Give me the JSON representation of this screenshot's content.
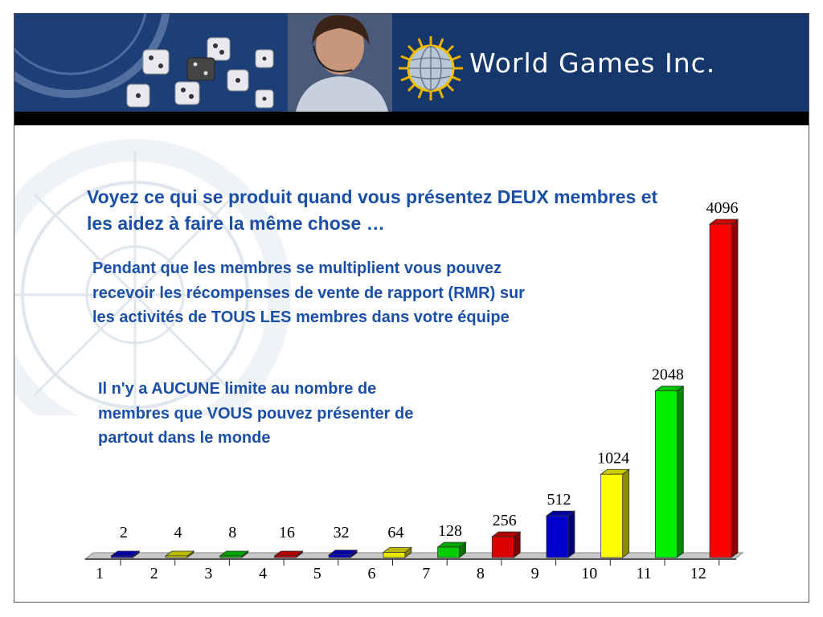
{
  "banner": {
    "brand_text": "World Games Inc.",
    "background_color": "#15376b"
  },
  "headline": "Voyez ce qui se produit quand vous présentez DEUX membres et les aidez à faire la même chose …",
  "paragraph1": "Pendant que les membres se multiplient vous pouvez recevoir les récompenses de vente de rapport (RMR) sur les activités de TOUS LES membres dans votre équipe",
  "paragraph2": "Il n'y a AUCUNE limite au nombre de membres que VOUS pouvez présenter de partout dans le monde",
  "text_color": "#1a4fa8",
  "chart_data": {
    "type": "bar",
    "title": "",
    "xlabel": "",
    "ylabel": "",
    "categories": [
      "1",
      "2",
      "3",
      "4",
      "5",
      "6",
      "7",
      "8",
      "9",
      "10",
      "11",
      "12"
    ],
    "values": [
      2,
      4,
      8,
      16,
      32,
      64,
      128,
      256,
      512,
      1024,
      2048,
      4096
    ],
    "value_labels": [
      "2",
      "4",
      "8",
      "16",
      "32",
      "64",
      "128",
      "256",
      "512",
      "1024",
      "2048",
      "4096"
    ],
    "ylim": [
      0,
      4096
    ],
    "bar_colors": [
      "#0000cc",
      "#e8e800",
      "#00cc00",
      "#dd0000",
      "#0000cc",
      "#e8e800",
      "#00cc00",
      "#dd0000",
      "#0000cc",
      "#ffff00",
      "#00ee00",
      "#ff0000"
    ],
    "style": "3d",
    "grid": false,
    "legend": "none"
  }
}
